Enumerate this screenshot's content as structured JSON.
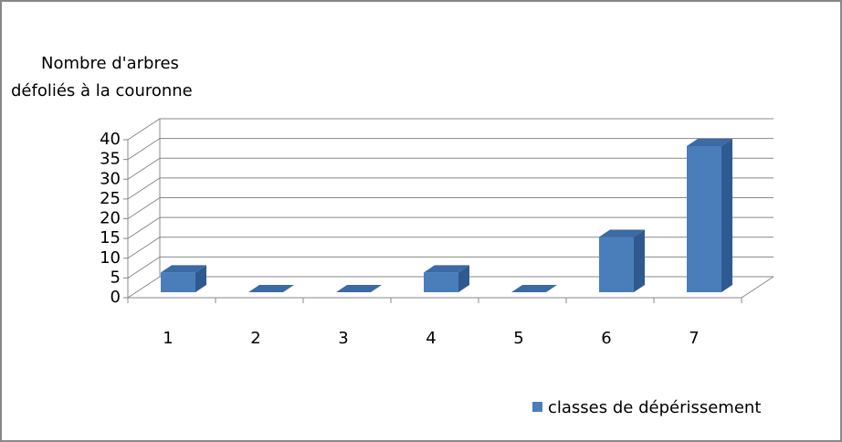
{
  "chart_data": {
    "type": "bar3d",
    "ylabel": [
      "Nombre d'arbres",
      "défoliés à la couronne"
    ],
    "categories": [
      "1",
      "2",
      "3",
      "4",
      "5",
      "6",
      "7"
    ],
    "series": [
      {
        "name": "classes de dépérissement",
        "color": "#4a7ebb",
        "values": [
          5,
          0,
          0,
          5,
          0,
          14,
          37
        ]
      }
    ],
    "ylim": [
      0,
      40
    ],
    "yticks": [
      0,
      5,
      10,
      15,
      20,
      25,
      30,
      35,
      40
    ],
    "grid": true,
    "legend": "bottom-right"
  }
}
